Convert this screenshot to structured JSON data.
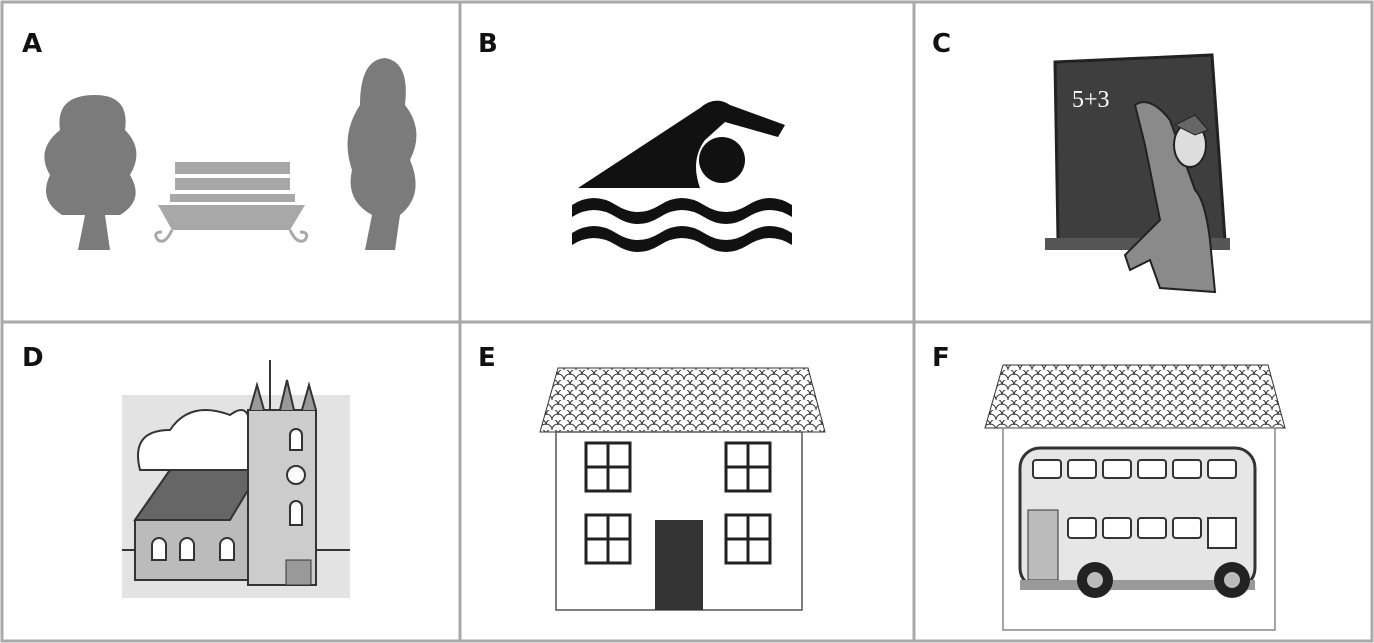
{
  "panels": [
    {
      "label": "A"
    },
    {
      "label": "B"
    },
    {
      "label": "C",
      "board_text": "5+3"
    },
    {
      "label": "D"
    },
    {
      "label": "E"
    },
    {
      "label": "F"
    }
  ]
}
